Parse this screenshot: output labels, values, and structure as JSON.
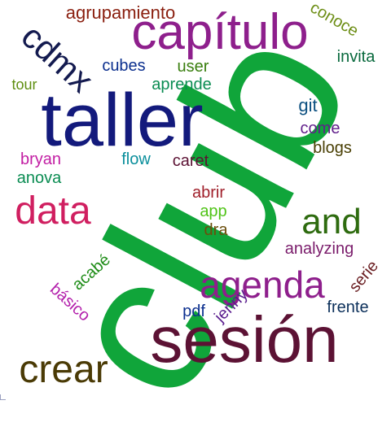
{
  "words": [
    {
      "text": "club",
      "color": "#10a53a"
    },
    {
      "text": "sesión",
      "color": "#5c1234"
    },
    {
      "text": "taller",
      "color": "#131a7c"
    },
    {
      "text": "capítulo",
      "color": "#8e1f8c"
    },
    {
      "text": "agenda",
      "color": "#8e1f8c"
    },
    {
      "text": "crear",
      "color": "#4a3a05"
    },
    {
      "text": "data",
      "color": "#d01f60"
    },
    {
      "text": "and",
      "color": "#2e6b0f"
    },
    {
      "text": "cdmx",
      "color": "#131a4f"
    },
    {
      "text": "agrupamiento",
      "color": "#8a1f0f"
    },
    {
      "text": "conoce",
      "color": "#6d8e16"
    },
    {
      "text": "invita",
      "color": "#0a6a3e"
    },
    {
      "text": "cubes",
      "color": "#0b2f8e"
    },
    {
      "text": "user",
      "color": "#3a7f0f"
    },
    {
      "text": "aprende",
      "color": "#0a8c52"
    },
    {
      "text": "tour",
      "color": "#5e8e10"
    },
    {
      "text": "git",
      "color": "#0c5080"
    },
    {
      "text": "come",
      "color": "#611f8b"
    },
    {
      "text": "blogs",
      "color": "#4a4005"
    },
    {
      "text": "bryan",
      "color": "#c21ea3"
    },
    {
      "text": "flow",
      "color": "#0b8f9c"
    },
    {
      "text": "caret",
      "color": "#5c1234"
    },
    {
      "text": "anova",
      "color": "#0a8c52"
    },
    {
      "text": "abrir",
      "color": "#a01f2a"
    },
    {
      "text": "app",
      "color": "#4fc316"
    },
    {
      "text": "dra",
      "color": "#6b4e0c"
    },
    {
      "text": "analyzing",
      "color": "#7a1c6b"
    },
    {
      "text": "acabé",
      "color": "#1f8d18"
    },
    {
      "text": "serie",
      "color": "#6b1f23"
    },
    {
      "text": "básico",
      "color": "#b31fab"
    },
    {
      "text": "frente",
      "color": "#0b2f5a"
    },
    {
      "text": "jenny",
      "color": "#5a1d8e"
    },
    {
      "text": "pdf",
      "color": "#0b2f8e"
    }
  ]
}
